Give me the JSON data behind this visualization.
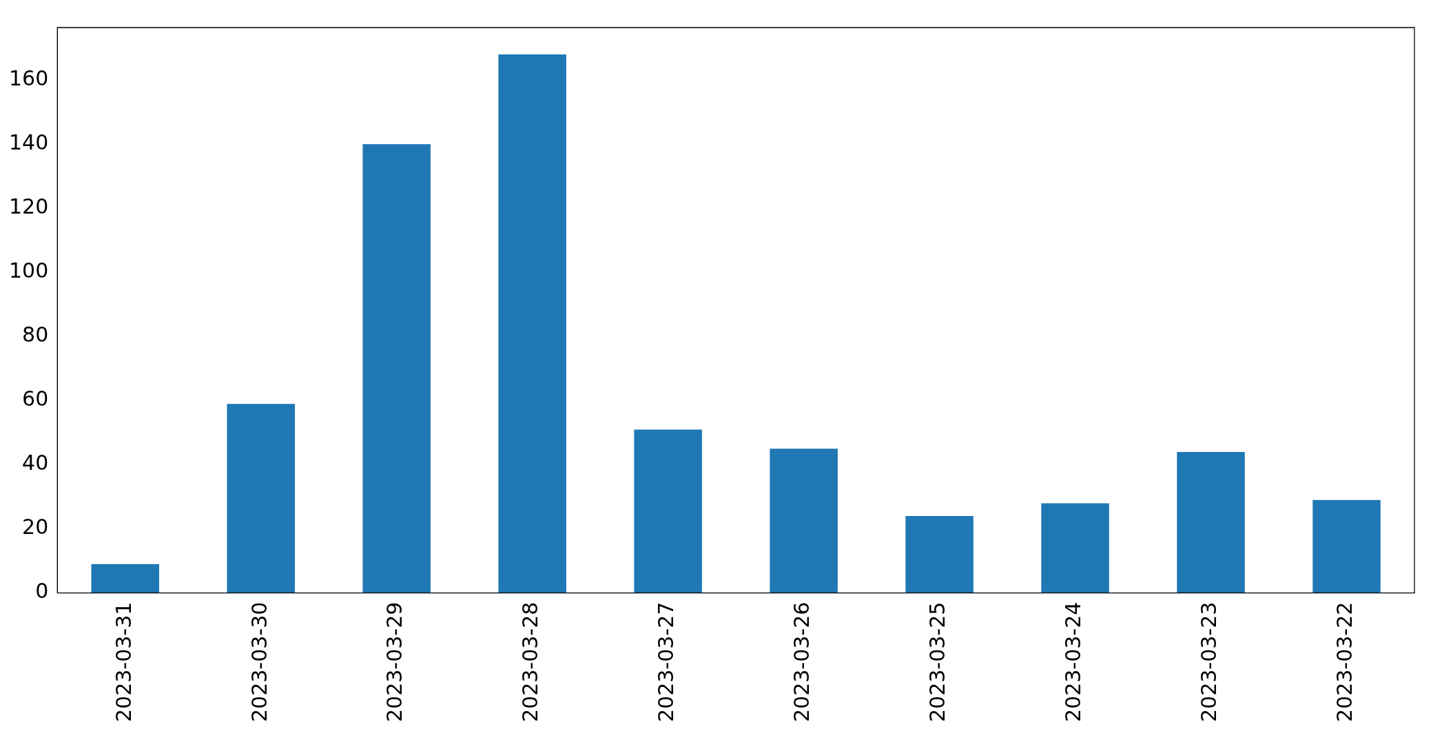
{
  "chart_data": {
    "type": "bar",
    "categories": [
      "2023-03-31",
      "2023-03-30",
      "2023-03-29",
      "2023-03-28",
      "2023-03-27",
      "2023-03-26",
      "2023-03-25",
      "2023-03-24",
      "2023-03-23",
      "2023-03-22"
    ],
    "values": [
      9,
      59,
      140,
      168,
      51,
      45,
      24,
      28,
      44,
      29
    ],
    "color": "#1f77b4",
    "ylim": [
      0,
      176.4
    ],
    "yticks": [
      0,
      20,
      40,
      60,
      80,
      100,
      120,
      140,
      160
    ],
    "legend": false
  }
}
